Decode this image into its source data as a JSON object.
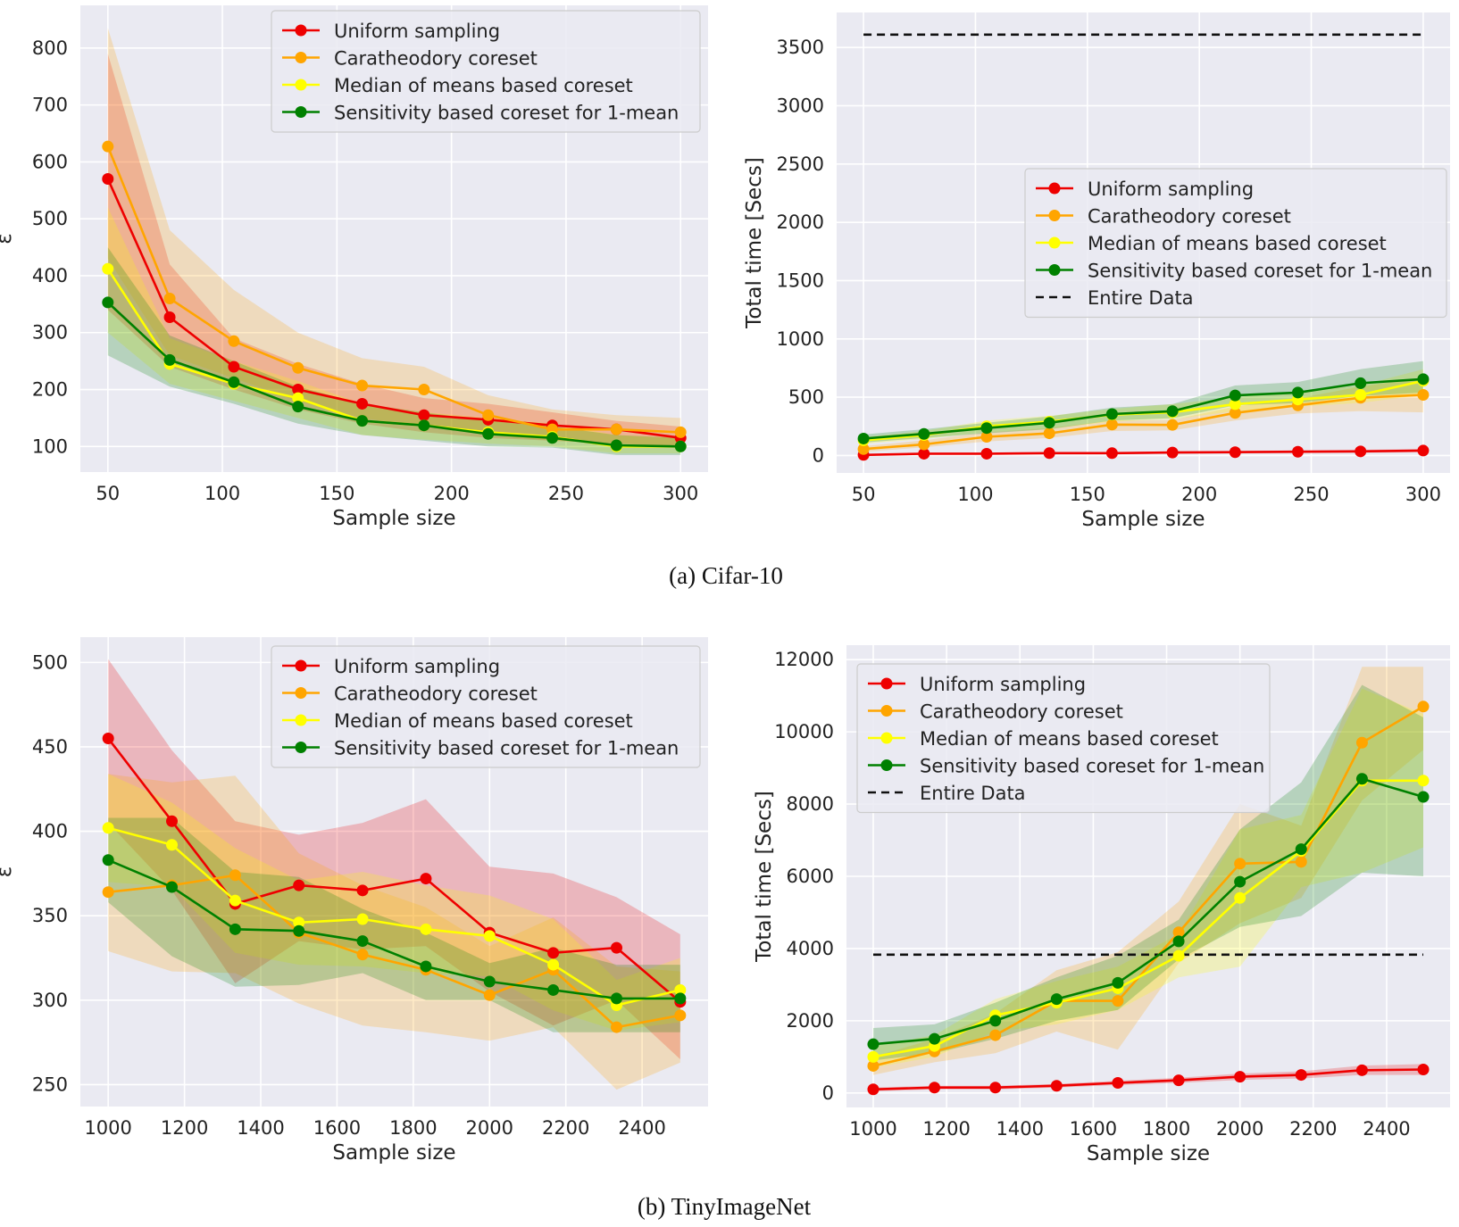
{
  "figure": {
    "caption_a": "(a)  Cifar-10",
    "caption_b": "(b)  TinyImageNet"
  },
  "colors": {
    "uniform": "#ee0000",
    "caratheodory": "#ffa500",
    "median": "#ffff00",
    "sensitivity": "#008000",
    "entire": "#111111",
    "panel_bg": "#eaeaf2",
    "grid": "#ffffff"
  },
  "chart_data": [
    {
      "id": "cifar-eps",
      "type": "line",
      "title": "",
      "xlabel": "Sample size",
      "ylabel": "ε",
      "xlim": [
        38,
        312
      ],
      "ylim": [
        55,
        875
      ],
      "xticks": [
        50,
        100,
        150,
        200,
        250,
        300
      ],
      "yticks": [
        100,
        200,
        300,
        400,
        500,
        600,
        700,
        800
      ],
      "grid": true,
      "legend": "top-right",
      "x": [
        50,
        77,
        105,
        133,
        161,
        188,
        216,
        244,
        272,
        300
      ],
      "series": [
        {
          "key": "uniform",
          "name": "Uniform sampling",
          "values": [
            570,
            327,
            240,
            200,
            175,
            155,
            147,
            137,
            130,
            115
          ],
          "lower": [
            340,
            240,
            200,
            165,
            140,
            125,
            115,
            110,
            105,
            100
          ],
          "upper": [
            790,
            420,
            290,
            245,
            210,
            185,
            175,
            160,
            145,
            135
          ]
        },
        {
          "key": "caratheodory",
          "name": "Caratheodory coreset",
          "values": [
            627,
            360,
            285,
            238,
            207,
            200,
            155,
            130,
            130,
            125
          ],
          "lower": [
            430,
            260,
            220,
            180,
            150,
            135,
            120,
            110,
            105,
            100
          ],
          "upper": [
            835,
            480,
            375,
            300,
            255,
            240,
            190,
            165,
            155,
            150
          ]
        },
        {
          "key": "median",
          "name": "Median of means based coreset",
          "values": [
            412,
            245,
            210,
            185,
            145,
            137,
            125,
            117,
            100,
            100
          ],
          "lower": [
            300,
            210,
            180,
            150,
            120,
            112,
            105,
            100,
            88,
            88
          ],
          "upper": [
            520,
            290,
            250,
            215,
            175,
            160,
            150,
            140,
            120,
            115
          ]
        },
        {
          "key": "sensitivity",
          "name": "Sensitivity based coreset for 1-mean",
          "values": [
            353,
            252,
            213,
            170,
            145,
            137,
            122,
            115,
            102,
            100
          ],
          "lower": [
            260,
            205,
            175,
            140,
            120,
            110,
            100,
            98,
            85,
            85
          ],
          "upper": [
            450,
            295,
            250,
            205,
            175,
            160,
            145,
            135,
            120,
            115
          ]
        }
      ],
      "reference": null
    },
    {
      "id": "cifar-time",
      "type": "line",
      "title": "",
      "xlabel": "Sample size",
      "ylabel": "Total time [Secs]",
      "xlim": [
        38,
        312
      ],
      "ylim": [
        -150,
        3800
      ],
      "xticks": [
        50,
        100,
        150,
        200,
        250,
        300
      ],
      "yticks": [
        0,
        500,
        1000,
        1500,
        2000,
        2500,
        3000,
        3500
      ],
      "grid": true,
      "legend": "center-right",
      "x": [
        50,
        77,
        105,
        133,
        161,
        188,
        216,
        244,
        272,
        300
      ],
      "series": [
        {
          "key": "uniform",
          "name": "Uniform sampling",
          "values": [
            5,
            15,
            15,
            20,
            20,
            25,
            28,
            32,
            35,
            42
          ],
          "lower": [
            0,
            8,
            8,
            12,
            12,
            15,
            18,
            20,
            22,
            28
          ],
          "upper": [
            12,
            22,
            22,
            28,
            28,
            35,
            38,
            44,
            48,
            56
          ]
        },
        {
          "key": "caratheodory",
          "name": "Caratheodory coreset",
          "values": [
            55,
            95,
            160,
            190,
            265,
            262,
            365,
            430,
            495,
            520
          ],
          "lower": [
            30,
            70,
            120,
            150,
            210,
            215,
            300,
            360,
            380,
            370
          ],
          "upper": [
            80,
            130,
            200,
            235,
            300,
            305,
            420,
            490,
            590,
            670
          ]
        },
        {
          "key": "median",
          "name": "Median of means based coreset",
          "values": [
            130,
            175,
            250,
            290,
            350,
            370,
            440,
            480,
            520,
            640
          ],
          "lower": [
            100,
            140,
            200,
            230,
            290,
            310,
            380,
            420,
            450,
            520
          ],
          "upper": [
            160,
            210,
            300,
            340,
            400,
            440,
            500,
            550,
            600,
            740
          ]
        },
        {
          "key": "sensitivity",
          "name": "Sensitivity based coreset for 1-mean",
          "values": [
            145,
            185,
            235,
            280,
            355,
            380,
            515,
            540,
            620,
            655
          ],
          "lower": [
            110,
            150,
            190,
            225,
            300,
            320,
            430,
            450,
            510,
            540
          ],
          "upper": [
            180,
            225,
            280,
            335,
            410,
            440,
            600,
            630,
            740,
            810
          ]
        }
      ],
      "reference": {
        "key": "entire",
        "name": "Entire Data",
        "value": 3610
      }
    },
    {
      "id": "tiny-eps",
      "type": "line",
      "title": "",
      "xlabel": "Sample size",
      "ylabel": "ε",
      "xlim": [
        927,
        2573
      ],
      "ylim": [
        237,
        515
      ],
      "xticks": [
        1000,
        1200,
        1400,
        1600,
        1800,
        2000,
        2200,
        2400
      ],
      "yticks": [
        250,
        300,
        350,
        400,
        450,
        500
      ],
      "grid": true,
      "legend": "top-right",
      "x": [
        1000,
        1167,
        1333,
        1500,
        1667,
        1833,
        2000,
        2167,
        2333,
        2500
      ],
      "series": [
        {
          "key": "uniform",
          "name": "Uniform sampling",
          "values": [
            455,
            406,
            357,
            368,
            365,
            372,
            340,
            328,
            331,
            299
          ],
          "lower": [
            405,
            365,
            310,
            335,
            330,
            332,
            305,
            285,
            300,
            265
          ],
          "upper": [
            502,
            448,
            406,
            398,
            405,
            419,
            379,
            375,
            361,
            339
          ]
        },
        {
          "key": "caratheodory",
          "name": "Caratheodory coreset",
          "values": [
            364,
            368,
            374,
            340,
            327,
            318,
            303,
            318,
            284,
            291
          ],
          "lower": [
            329,
            317,
            316,
            298,
            285,
            281,
            276,
            284,
            247,
            263
          ],
          "upper": [
            434,
            429,
            433,
            387,
            368,
            355,
            332,
            349,
            320,
            317
          ]
        },
        {
          "key": "median",
          "name": "Median of means based coreset",
          "values": [
            402,
            392,
            359,
            346,
            348,
            342,
            338,
            321,
            297,
            306
          ],
          "lower": [
            370,
            367,
            328,
            321,
            320,
            316,
            314,
            294,
            282,
            287
          ],
          "upper": [
            434,
            417,
            390,
            371,
            376,
            368,
            362,
            348,
            312,
            325
          ]
        },
        {
          "key": "sensitivity",
          "name": "Sensitivity based coreset for 1-mean",
          "values": [
            383,
            367,
            342,
            341,
            335,
            320,
            311,
            306,
            301,
            301
          ],
          "lower": [
            358,
            326,
            308,
            309,
            316,
            300,
            300,
            281,
            281,
            281
          ],
          "upper": [
            408,
            408,
            376,
            373,
            354,
            340,
            322,
            331,
            321,
            321
          ]
        }
      ],
      "reference": null
    },
    {
      "id": "tiny-time",
      "type": "line",
      "title": "",
      "xlabel": "Sample size",
      "ylabel": "Total time [Secs]",
      "xlim": [
        927,
        2573
      ],
      "ylim": [
        -400,
        12400
      ],
      "xticks": [
        1000,
        1200,
        1400,
        1600,
        1800,
        2000,
        2200,
        2400
      ],
      "yticks": [
        0,
        2000,
        4000,
        6000,
        8000,
        10000,
        12000
      ],
      "grid": true,
      "legend": "top-left",
      "x": [
        1000,
        1167,
        1333,
        1500,
        1667,
        1833,
        2000,
        2167,
        2333,
        2500
      ],
      "series": [
        {
          "key": "uniform",
          "name": "Uniform sampling",
          "values": [
            100,
            150,
            150,
            200,
            280,
            350,
            450,
            500,
            630,
            650
          ],
          "lower": [
            50,
            100,
            100,
            150,
            220,
            280,
            360,
            400,
            500,
            500
          ],
          "upper": [
            150,
            200,
            200,
            250,
            340,
            420,
            540,
            600,
            760,
            800
          ]
        },
        {
          "key": "caratheodory",
          "name": "Caratheodory coreset",
          "values": [
            750,
            1150,
            1600,
            2550,
            2550,
            4450,
            6350,
            6400,
            9700,
            10700
          ],
          "lower": [
            500,
            850,
            1100,
            1700,
            1200,
            3600,
            4700,
            5400,
            8100,
            9500
          ],
          "upper": [
            1000,
            1500,
            2200,
            3400,
            3900,
            5300,
            8000,
            7400,
            11800,
            11800
          ]
        },
        {
          "key": "median",
          "name": "Median of means based coreset",
          "values": [
            1000,
            1300,
            2150,
            2500,
            2900,
            3800,
            5400,
            6700,
            8650,
            8650
          ],
          "lower": [
            700,
            1000,
            1700,
            1900,
            2300,
            3200,
            3500,
            5700,
            6100,
            6800
          ],
          "upper": [
            1300,
            1600,
            2600,
            3100,
            3500,
            4400,
            7300,
            7700,
            11200,
            10500
          ]
        },
        {
          "key": "sensitivity",
          "name": "Sensitivity based coreset for 1-mean",
          "values": [
            1350,
            1500,
            2000,
            2600,
            3050,
            4200,
            5850,
            6750,
            8700,
            8200
          ],
          "lower": [
            900,
            1100,
            1500,
            2000,
            2300,
            3700,
            4600,
            4900,
            6100,
            6000
          ],
          "upper": [
            1800,
            1900,
            2500,
            3200,
            3800,
            4800,
            7300,
            8600,
            11300,
            10400
          ]
        }
      ],
      "reference": {
        "key": "entire",
        "name": "Entire Data",
        "value": 3830
      }
    }
  ]
}
